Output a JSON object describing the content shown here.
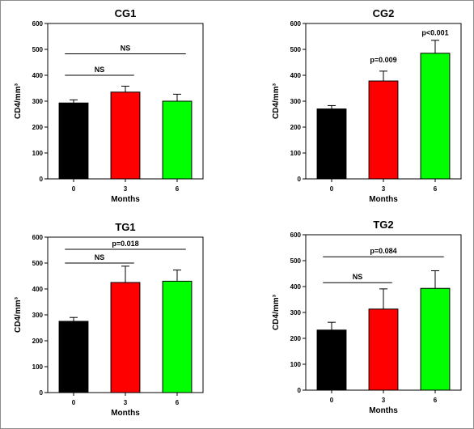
{
  "colors": {
    "black_bar": "#000000",
    "red_bar": "#ff0000",
    "green_bar": "#00ff00"
  },
  "chart_data": [
    {
      "type": "bar",
      "title": "CG1",
      "xlabel": "Months",
      "ylabel": "CD4/mm³",
      "categories": [
        "0",
        "3",
        "6"
      ],
      "values": [
        293,
        335,
        300
      ],
      "errors": [
        12,
        23,
        27
      ],
      "ylim": [
        0,
        600
      ],
      "yticks": [
        "0",
        "100",
        "200",
        "300",
        "400",
        "500",
        "600"
      ],
      "grid": false,
      "annotations": [
        {
          "text": "NS",
          "from": 0,
          "to": 1,
          "y": 400
        },
        {
          "text": "NS",
          "from": 0,
          "to": 2,
          "y": 483
        }
      ]
    },
    {
      "type": "bar",
      "title": "CG2",
      "xlabel": "Months",
      "ylabel": "CD4/mm³",
      "categories": [
        "0",
        "3",
        "6"
      ],
      "values": [
        270,
        378,
        485
      ],
      "errors": [
        13,
        38,
        50
      ],
      "ylim": [
        0,
        600
      ],
      "yticks": [
        "0",
        "100",
        "200",
        "300",
        "400",
        "500",
        "600"
      ],
      "grid": false,
      "annotations": [
        {
          "text": "p=0.009",
          "at": 1,
          "y": 450
        },
        {
          "text": "p<0.001",
          "at": 2,
          "y": 555
        }
      ]
    },
    {
      "type": "bar",
      "title": "TG1",
      "xlabel": "Months",
      "ylabel": "CD4/mm³",
      "categories": [
        "0",
        "3",
        "6"
      ],
      "values": [
        275,
        425,
        430
      ],
      "errors": [
        15,
        63,
        43
      ],
      "ylim": [
        0,
        600
      ],
      "yticks": [
        "0",
        "100",
        "200",
        "300",
        "400",
        "500",
        "600"
      ],
      "grid": false,
      "annotations": [
        {
          "text": "NS",
          "from": 0,
          "to": 1,
          "y": 500
        },
        {
          "text": "p=0.018",
          "from": 0,
          "to": 2,
          "y": 553
        }
      ]
    },
    {
      "type": "bar",
      "title": "TG2",
      "xlabel": "Months",
      "ylabel": "CD4/mm³",
      "categories": [
        "0",
        "3",
        "6"
      ],
      "values": [
        232,
        313,
        393
      ],
      "errors": [
        30,
        78,
        68
      ],
      "ylim": [
        0,
        600
      ],
      "yticks": [
        "0",
        "100",
        "200",
        "300",
        "400",
        "500",
        "600"
      ],
      "grid": false,
      "annotations": [
        {
          "text": "NS",
          "from": 0,
          "to": 1,
          "y": 415
        },
        {
          "text": "p=0.084",
          "from": 0,
          "to": 2,
          "y": 515
        }
      ]
    }
  ]
}
